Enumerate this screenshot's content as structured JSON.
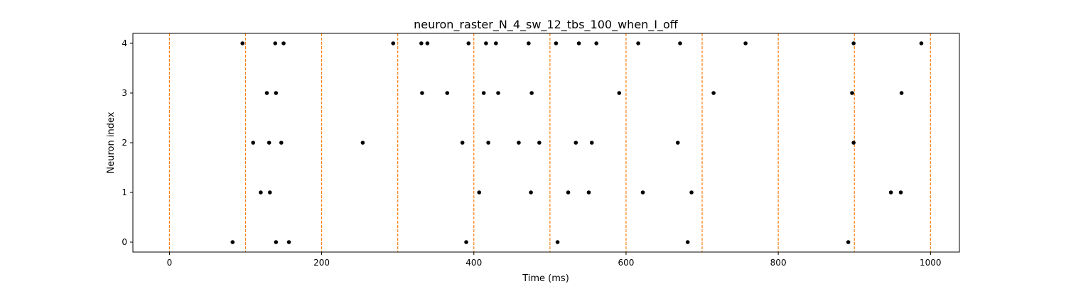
{
  "chart_data": {
    "type": "scatter",
    "title": "neuron_raster_N_4_sw_12_tbs_100_when_I_off",
    "xlabel": "Time (ms)",
    "ylabel": "Neuron index",
    "xlim": [
      -48,
      1038
    ],
    "ylim": [
      -0.2,
      4.2
    ],
    "x_ticks": [
      0,
      200,
      400,
      600,
      800,
      1000
    ],
    "y_ticks": [
      0,
      1,
      2,
      3,
      4
    ],
    "grid": false,
    "legend": "none",
    "vlines": {
      "x": [
        0,
        100,
        200,
        300,
        400,
        500,
        600,
        700,
        800,
        900,
        1000
      ],
      "color": "#ff7f0e",
      "style": "dashed"
    },
    "marker_color": "#000000",
    "series": [
      {
        "x": [
          83,
          140,
          157,
          390,
          510,
          681,
          892
        ],
        "y": [
          0,
          0,
          0,
          0,
          0,
          0,
          0
        ]
      },
      {
        "x": [
          120,
          132,
          407,
          475,
          524,
          551,
          622,
          686,
          948,
          961
        ],
        "y": [
          1,
          1,
          1,
          1,
          1,
          1,
          1,
          1,
          1,
          1
        ]
      },
      {
        "x": [
          110,
          131,
          147,
          254,
          385,
          419,
          459,
          486,
          534,
          555,
          668,
          899
        ],
        "y": [
          2,
          2,
          2,
          2,
          2,
          2,
          2,
          2,
          2,
          2,
          2,
          2
        ]
      },
      {
        "x": [
          128,
          140,
          332,
          365,
          413,
          432,
          476,
          591,
          715,
          897,
          962
        ],
        "y": [
          3,
          3,
          3,
          3,
          3,
          3,
          3,
          3,
          3,
          3,
          3
        ]
      },
      {
        "x": [
          96,
          139,
          150,
          294,
          331,
          339,
          393,
          416,
          429,
          472,
          508,
          538,
          561,
          616,
          671,
          757,
          899,
          988
        ],
        "y": [
          4,
          4,
          4,
          4,
          4,
          4,
          4,
          4,
          4,
          4,
          4,
          4,
          4,
          4,
          4,
          4,
          4,
          4
        ]
      }
    ]
  }
}
